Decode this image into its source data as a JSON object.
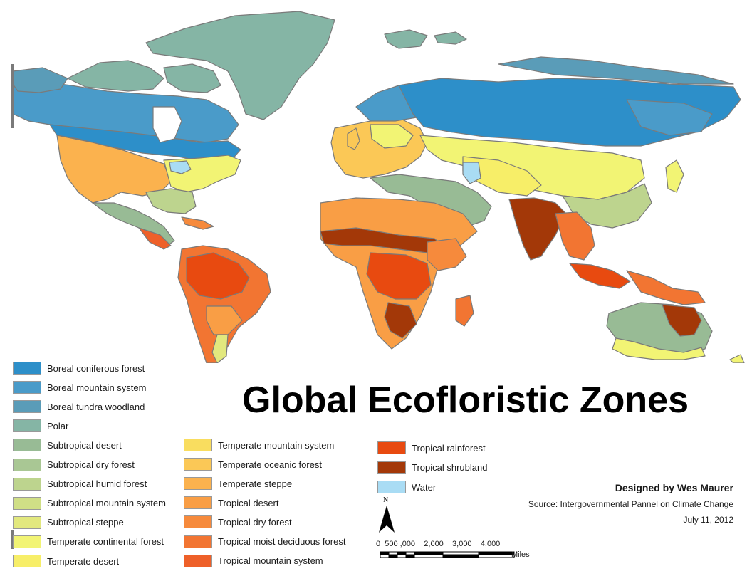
{
  "title": "Global Ecofloristic Zones",
  "colors": {
    "boreal_coniferous": "#2d8fc9",
    "boreal_mountain": "#4a9bc9",
    "boreal_tundra": "#5a9cb8",
    "polar": "#85b5a5",
    "subtropical_desert": "#98bb95",
    "subtropical_dry": "#a9c794",
    "subtropical_humid": "#bdd48e",
    "subtropical_mountain": "#d0df86",
    "subtropical_steppe": "#e2e87e",
    "temperate_continental": "#f2f474",
    "temperate_desert": "#f7ee68",
    "temperate_mountain": "#f9dd5f",
    "temperate_oceanic": "#fbc856",
    "temperate_steppe": "#fbb24e",
    "tropical_desert": "#f99e45",
    "tropical_dry": "#f68a3c",
    "tropical_moist": "#f27532",
    "tropical_mountain": "#ee6029",
    "tropical_rainforest": "#e84a10",
    "tropical_shrubland": "#a33808",
    "water": "#a9dcf4",
    "ocean": "#ffffff",
    "coast": "#7a7a7a"
  },
  "legend": {
    "column1": [
      {
        "label": "Boreal coniferous forest",
        "color": "#2d8fc9"
      },
      {
        "label": "Boreal mountain system",
        "color": "#4a9bc9"
      },
      {
        "label": "Boreal tundra woodland",
        "color": "#5a9cb8"
      },
      {
        "label": "Polar",
        "color": "#85b5a5"
      },
      {
        "label": "Subtropical desert",
        "color": "#98bb95"
      },
      {
        "label": "Subtropical dry forest",
        "color": "#a9c794"
      },
      {
        "label": "Subtropical humid forest",
        "color": "#bdd48e"
      },
      {
        "label": "Subtropical mountain system",
        "color": "#d0df86"
      },
      {
        "label": "Subtropical steppe",
        "color": "#e2e87e"
      },
      {
        "label": "Temperate continental forest",
        "color": "#f2f474"
      },
      {
        "label": "Temperate desert",
        "color": "#f7ee68"
      }
    ],
    "column2": [
      {
        "label": "Temperate mountain system",
        "color": "#f9dd5f"
      },
      {
        "label": "Temperate oceanic forest",
        "color": "#fbc856"
      },
      {
        "label": "Temperate steppe",
        "color": "#fbb24e"
      },
      {
        "label": "Tropical desert",
        "color": "#f99e45"
      },
      {
        "label": "Tropical dry forest",
        "color": "#f68a3c"
      },
      {
        "label": "Tropical moist deciduous forest",
        "color": "#f27532"
      },
      {
        "label": "Tropical mountain system",
        "color": "#ee6029"
      }
    ],
    "column3": [
      {
        "label": "Tropical rainforest",
        "color": "#e84a10"
      },
      {
        "label": "Tropical shrubland",
        "color": "#a33808"
      },
      {
        "label": "Water",
        "color": "#a9dcf4"
      }
    ]
  },
  "credit": "Designed by Wes Maurer",
  "source": "Source: Intergovernmental Pannel on Climate Change",
  "date": "July 11, 2012",
  "north_arrow": {
    "label": "N",
    "icon": "north-arrow-icon"
  },
  "scale_bar": {
    "ticks": "0  500 ,000    2,000    3,000    4,000",
    "unit": "Miles"
  }
}
